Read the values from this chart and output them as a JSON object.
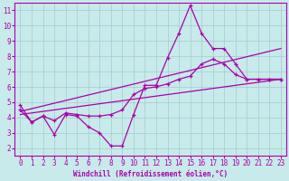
{
  "xlabel": "Windchill (Refroidissement éolien,°C)",
  "xlim": [
    -0.5,
    23.5
  ],
  "ylim": [
    1.5,
    11.5
  ],
  "xticks": [
    0,
    1,
    2,
    3,
    4,
    5,
    6,
    7,
    8,
    9,
    10,
    11,
    12,
    13,
    14,
    15,
    16,
    17,
    18,
    19,
    20,
    21,
    22,
    23
  ],
  "yticks": [
    2,
    3,
    4,
    5,
    6,
    7,
    8,
    9,
    10,
    11
  ],
  "color": "#aa00aa",
  "bg_color": "#c8eaea",
  "grid_color": "#a0cccc",
  "line1_x": [
    0,
    1,
    2,
    3,
    4,
    5,
    6,
    7,
    8,
    9,
    10,
    11,
    12,
    13,
    14,
    15,
    16,
    17,
    18,
    19,
    20,
    21,
    22,
    23
  ],
  "line1_y": [
    4.8,
    3.7,
    4.1,
    2.9,
    4.2,
    4.1,
    3.4,
    3.0,
    2.15,
    2.15,
    4.2,
    6.1,
    6.1,
    7.9,
    9.5,
    11.3,
    9.5,
    8.5,
    8.5,
    7.5,
    6.5,
    6.5,
    6.5,
    6.5
  ],
  "line2_x": [
    0,
    1,
    2,
    3,
    4,
    5,
    6,
    7,
    8,
    9,
    10,
    11,
    12,
    13,
    14,
    15,
    16,
    17,
    18,
    19,
    20,
    21,
    22,
    23
  ],
  "line2_y": [
    4.5,
    3.7,
    4.1,
    3.8,
    4.3,
    4.2,
    4.1,
    4.1,
    4.2,
    4.5,
    5.5,
    5.9,
    6.0,
    6.2,
    6.5,
    6.7,
    7.5,
    7.8,
    7.5,
    6.8,
    6.5,
    6.5,
    6.5,
    6.5
  ],
  "line3_x": [
    0,
    23
  ],
  "line3_y": [
    4.4,
    8.5
  ],
  "line4_x": [
    0,
    23
  ],
  "line4_y": [
    4.2,
    6.5
  ]
}
